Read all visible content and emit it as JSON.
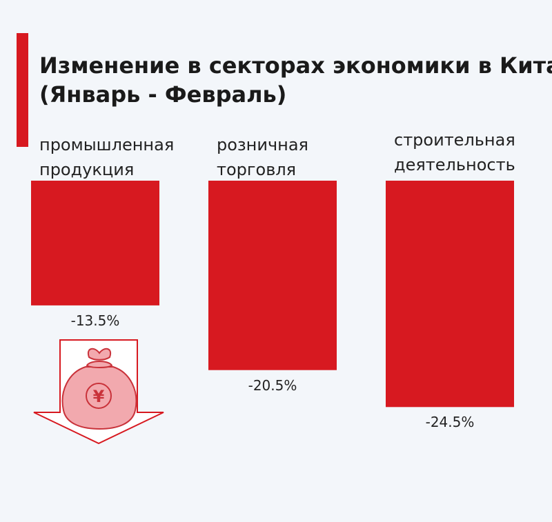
{
  "title": {
    "line1": "Изменение в секторах экономики в Китае",
    "line2": "(Январь - Февраль)"
  },
  "colors": {
    "accent": "#d71920",
    "bar": "#d71920",
    "arrow_outline": "#d71920",
    "bag_fill": "#f2a9ae",
    "bag_stroke": "#c9323a"
  },
  "icons": [
    "down-arrow-icon",
    "money-bag-icon",
    "yuan-sign-icon"
  ],
  "chart_data": {
    "type": "bar",
    "orientation": "vertical-down",
    "categories": [
      [
        "промышленная",
        "продукция"
      ],
      [
        "розничная",
        "торговля"
      ],
      [
        "строительная",
        "деятельность"
      ]
    ],
    "values": [
      -13.5,
      -20.5,
      -24.5
    ],
    "value_labels": [
      "-13.5%",
      "-20.5%",
      "-24.5%"
    ],
    "unit": "%",
    "ylim": [
      -25,
      0
    ],
    "grid": false,
    "legend": "none"
  },
  "bag_symbol": "¥"
}
